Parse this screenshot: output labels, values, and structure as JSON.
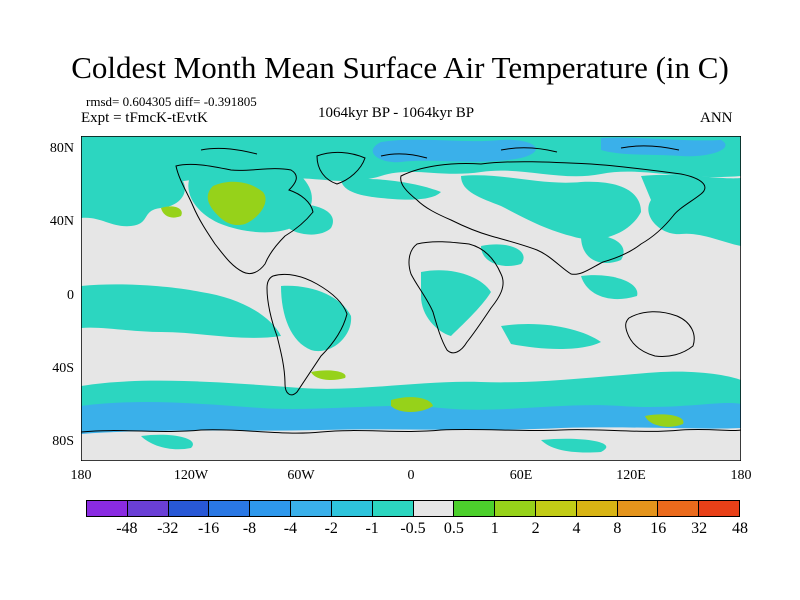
{
  "title": "Coldest Month Mean Surface Air Temperature (in C)",
  "stats": {
    "rmsd_diff": "rmsd= 0.604305 diff= -0.391805",
    "expt": "Expt = tFmcK-tEvtK",
    "period": "1064kyr BP - 1064kyr BP",
    "season": "ANN"
  },
  "lat_labels": [
    "80N",
    "40N",
    "0",
    "40S",
    "80S"
  ],
  "lon_labels": [
    "180",
    "120W",
    "60W",
    "0",
    "60E",
    "120E",
    "180"
  ],
  "colorbar": {
    "colors": [
      "#8a2be2",
      "#6a3fd6",
      "#2858d6",
      "#2a78e4",
      "#2e98ec",
      "#3ab0ea",
      "#2ec4dc",
      "#2cd6c0",
      "#e6e6e6",
      "#4cd02c",
      "#96d21a",
      "#c2cc16",
      "#d8b414",
      "#e4941c",
      "#ea6a1c",
      "#e84018"
    ],
    "labels": [
      "-48",
      "-32",
      "-16",
      "-8",
      "-4",
      "-2",
      "-1",
      "-0.5",
      "0.5",
      "1",
      "2",
      "4",
      "8",
      "16",
      "32",
      "48"
    ]
  },
  "colors": {
    "land_background": "#e6e6e6",
    "cool_anomaly": "#2cd6c0",
    "cooler_anomaly": "#3ab0ea",
    "coolest_anomaly": "#2e98ec",
    "warm_anomaly": "#96d21a",
    "coastline": "#000000"
  }
}
